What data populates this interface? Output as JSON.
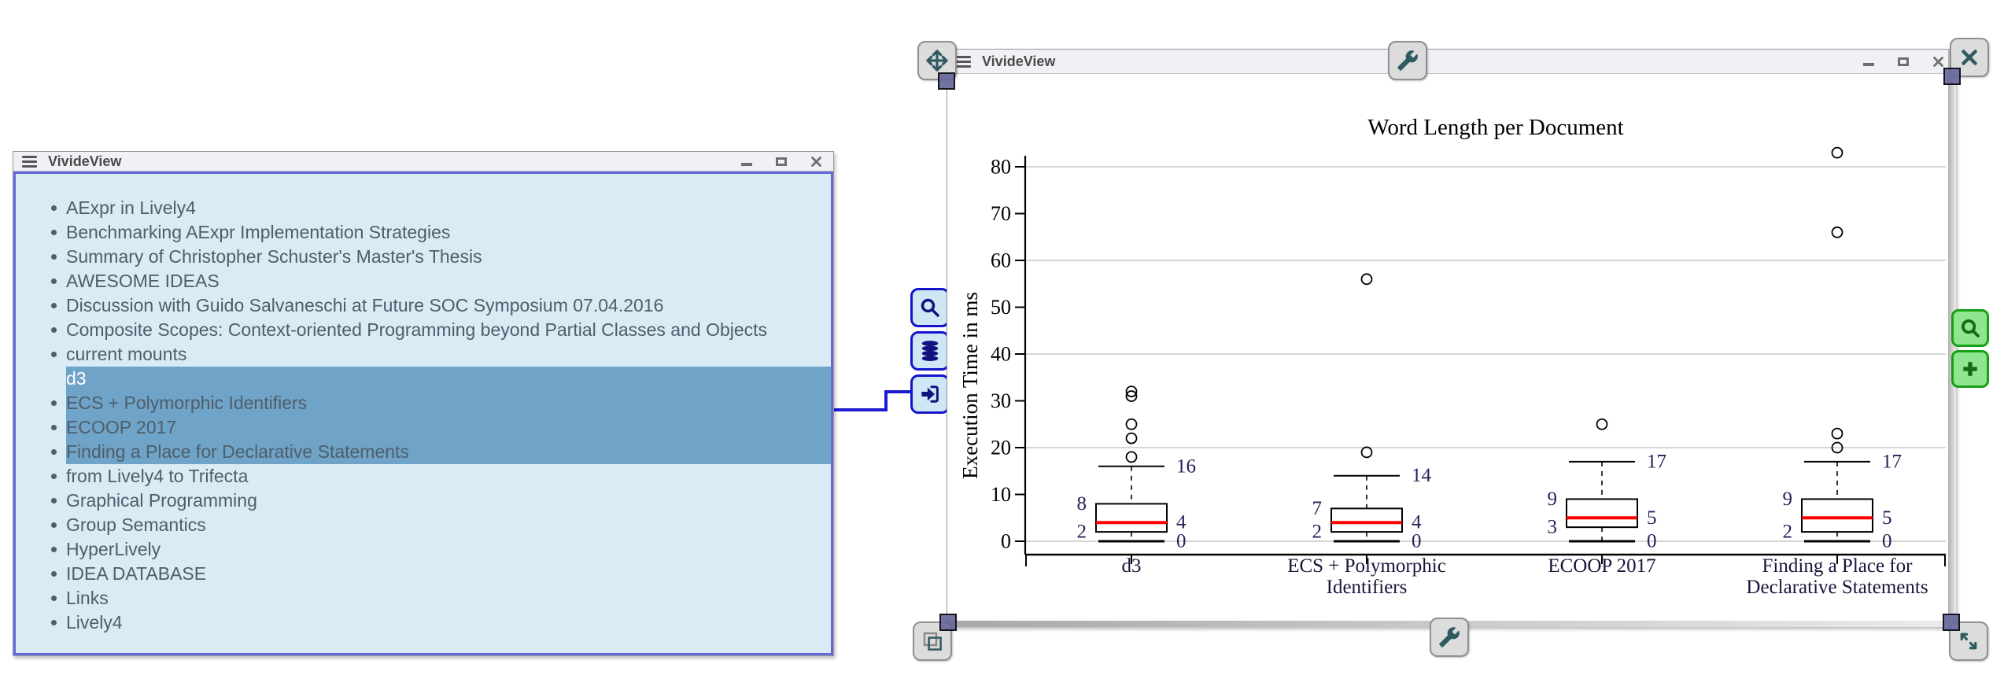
{
  "left_window": {
    "title": "VivideView",
    "items": [
      {
        "label": "AExpr in Lively4"
      },
      {
        "label": "Benchmarking AExpr Implementation Strategies"
      },
      {
        "label": "Summary of Christopher Schuster's Master's Thesis"
      },
      {
        "label": "AWESOME IDEAS"
      },
      {
        "label": "Discussion with Guido Salvaneschi at Future SOC Symposium 07.04.2016"
      },
      {
        "label": "Composite Scopes: Context-oriented Programming beyond Partial Classes and Objects"
      },
      {
        "label": "current mounts"
      },
      {
        "label": "d3",
        "selected": true,
        "active": true
      },
      {
        "label": "ECS + Polymorphic Identifiers",
        "selected": true
      },
      {
        "label": "ECOOP 2017",
        "selected": true
      },
      {
        "label": "Finding a Place for Declarative Statements",
        "selected": true
      },
      {
        "label": "from Lively4 to Trifecta"
      },
      {
        "label": "Graphical Programming"
      },
      {
        "label": "Group Semantics"
      },
      {
        "label": "HyperLively"
      },
      {
        "label": "IDEA DATABASE"
      },
      {
        "label": "Links"
      },
      {
        "label": "Lively4"
      }
    ]
  },
  "right_window": {
    "title": "VivideView"
  },
  "colors": {
    "selection_highlight": "#6FA3C7",
    "selection_border": "#6666DD",
    "connector_line": "#1B1BD1",
    "blue_button_bg": "#CFE7F5",
    "blue_button_border": "#1414CC",
    "blue_button_icon": "#12127E",
    "green_button_bg": "#90E690",
    "green_button_border": "#16A016",
    "green_button_icon": "#156B15",
    "halo_icon": "#2E5A60",
    "chart_annotation": "#23235A",
    "median": "#FF0000"
  },
  "chart_data": {
    "type": "boxplot",
    "title": "Word Length per Document",
    "ylabel": "Execution Time in ms",
    "ylim": [
      0,
      85
    ],
    "yticks": [
      0,
      10,
      20,
      30,
      40,
      50,
      60,
      70,
      80
    ],
    "gridline_values": [
      0,
      20,
      40,
      60,
      80
    ],
    "grid": true,
    "legend": "none",
    "series": [
      {
        "category_lines": [
          "d3"
        ],
        "min": 0,
        "q1": 2,
        "median": 4,
        "q3": 8,
        "whisker_high": 16,
        "outliers": [
          18,
          22,
          25,
          31,
          32
        ]
      },
      {
        "category_lines": [
          "ECS + Polymorphic",
          "Identifiers"
        ],
        "min": 0,
        "q1": 2,
        "median": 4,
        "q3": 7,
        "whisker_high": 14,
        "outliers": [
          19,
          56
        ]
      },
      {
        "category_lines": [
          "ECOOP 2017"
        ],
        "min": 0,
        "q1": 3,
        "median": 5,
        "q3": 9,
        "whisker_high": 17,
        "outliers": [
          25
        ]
      },
      {
        "category_lines": [
          "Finding a Place for",
          "Declarative Statements"
        ],
        "min": 0,
        "q1": 2,
        "median": 5,
        "q3": 9,
        "whisker_high": 17,
        "outliers": [
          20,
          23,
          66,
          83
        ]
      }
    ]
  }
}
